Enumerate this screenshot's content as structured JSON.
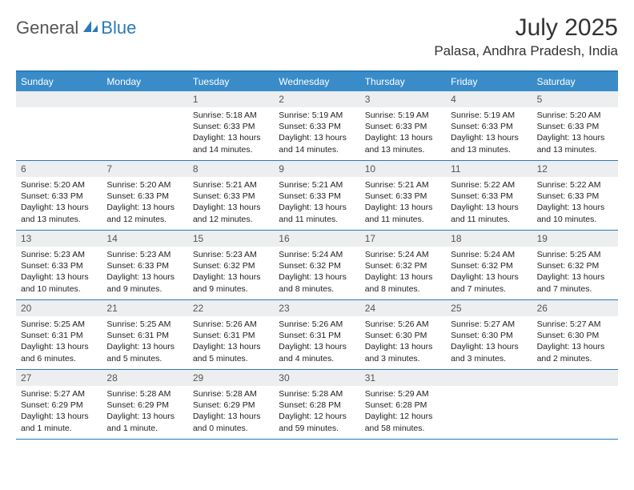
{
  "logo": {
    "text1": "General",
    "text2": "Blue"
  },
  "title": "July 2025",
  "location": "Palasa, Andhra Pradesh, India",
  "colors": {
    "brand_blue": "#2a7ab8",
    "header_blue": "#3a8cc9",
    "daynum_bg": "#eceeef",
    "text_gray": "#555555",
    "body_text": "#222222"
  },
  "dayHeaders": [
    "Sunday",
    "Monday",
    "Tuesday",
    "Wednesday",
    "Thursday",
    "Friday",
    "Saturday"
  ],
  "weeks": [
    [
      null,
      null,
      {
        "n": "1",
        "sr": "5:18 AM",
        "ss": "6:33 PM",
        "dl": "13 hours and 14 minutes."
      },
      {
        "n": "2",
        "sr": "5:19 AM",
        "ss": "6:33 PM",
        "dl": "13 hours and 14 minutes."
      },
      {
        "n": "3",
        "sr": "5:19 AM",
        "ss": "6:33 PM",
        "dl": "13 hours and 13 minutes."
      },
      {
        "n": "4",
        "sr": "5:19 AM",
        "ss": "6:33 PM",
        "dl": "13 hours and 13 minutes."
      },
      {
        "n": "5",
        "sr": "5:20 AM",
        "ss": "6:33 PM",
        "dl": "13 hours and 13 minutes."
      }
    ],
    [
      {
        "n": "6",
        "sr": "5:20 AM",
        "ss": "6:33 PM",
        "dl": "13 hours and 13 minutes."
      },
      {
        "n": "7",
        "sr": "5:20 AM",
        "ss": "6:33 PM",
        "dl": "13 hours and 12 minutes."
      },
      {
        "n": "8",
        "sr": "5:21 AM",
        "ss": "6:33 PM",
        "dl": "13 hours and 12 minutes."
      },
      {
        "n": "9",
        "sr": "5:21 AM",
        "ss": "6:33 PM",
        "dl": "13 hours and 11 minutes."
      },
      {
        "n": "10",
        "sr": "5:21 AM",
        "ss": "6:33 PM",
        "dl": "13 hours and 11 minutes."
      },
      {
        "n": "11",
        "sr": "5:22 AM",
        "ss": "6:33 PM",
        "dl": "13 hours and 11 minutes."
      },
      {
        "n": "12",
        "sr": "5:22 AM",
        "ss": "6:33 PM",
        "dl": "13 hours and 10 minutes."
      }
    ],
    [
      {
        "n": "13",
        "sr": "5:23 AM",
        "ss": "6:33 PM",
        "dl": "13 hours and 10 minutes."
      },
      {
        "n": "14",
        "sr": "5:23 AM",
        "ss": "6:33 PM",
        "dl": "13 hours and 9 minutes."
      },
      {
        "n": "15",
        "sr": "5:23 AM",
        "ss": "6:32 PM",
        "dl": "13 hours and 9 minutes."
      },
      {
        "n": "16",
        "sr": "5:24 AM",
        "ss": "6:32 PM",
        "dl": "13 hours and 8 minutes."
      },
      {
        "n": "17",
        "sr": "5:24 AM",
        "ss": "6:32 PM",
        "dl": "13 hours and 8 minutes."
      },
      {
        "n": "18",
        "sr": "5:24 AM",
        "ss": "6:32 PM",
        "dl": "13 hours and 7 minutes."
      },
      {
        "n": "19",
        "sr": "5:25 AM",
        "ss": "6:32 PM",
        "dl": "13 hours and 7 minutes."
      }
    ],
    [
      {
        "n": "20",
        "sr": "5:25 AM",
        "ss": "6:31 PM",
        "dl": "13 hours and 6 minutes."
      },
      {
        "n": "21",
        "sr": "5:25 AM",
        "ss": "6:31 PM",
        "dl": "13 hours and 5 minutes."
      },
      {
        "n": "22",
        "sr": "5:26 AM",
        "ss": "6:31 PM",
        "dl": "13 hours and 5 minutes."
      },
      {
        "n": "23",
        "sr": "5:26 AM",
        "ss": "6:31 PM",
        "dl": "13 hours and 4 minutes."
      },
      {
        "n": "24",
        "sr": "5:26 AM",
        "ss": "6:30 PM",
        "dl": "13 hours and 3 minutes."
      },
      {
        "n": "25",
        "sr": "5:27 AM",
        "ss": "6:30 PM",
        "dl": "13 hours and 3 minutes."
      },
      {
        "n": "26",
        "sr": "5:27 AM",
        "ss": "6:30 PM",
        "dl": "13 hours and 2 minutes."
      }
    ],
    [
      {
        "n": "27",
        "sr": "5:27 AM",
        "ss": "6:29 PM",
        "dl": "13 hours and 1 minute."
      },
      {
        "n": "28",
        "sr": "5:28 AM",
        "ss": "6:29 PM",
        "dl": "13 hours and 1 minute."
      },
      {
        "n": "29",
        "sr": "5:28 AM",
        "ss": "6:29 PM",
        "dl": "13 hours and 0 minutes."
      },
      {
        "n": "30",
        "sr": "5:28 AM",
        "ss": "6:28 PM",
        "dl": "12 hours and 59 minutes."
      },
      {
        "n": "31",
        "sr": "5:29 AM",
        "ss": "6:28 PM",
        "dl": "12 hours and 58 minutes."
      },
      null,
      null
    ]
  ],
  "labels": {
    "sunrise": "Sunrise: ",
    "sunset": "Sunset: ",
    "daylight": "Daylight: "
  }
}
